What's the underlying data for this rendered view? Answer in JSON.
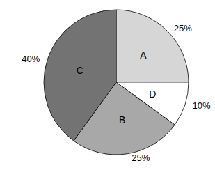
{
  "chart_data": {
    "type": "pie",
    "categories": [
      "A",
      "D",
      "B",
      "C"
    ],
    "values": [
      25,
      10,
      25,
      40
    ],
    "value_labels": [
      "25%",
      "10%",
      "25%",
      "40%"
    ],
    "colors": [
      "#d6d6d6",
      "#ffffff",
      "#a8a8a8",
      "#737373"
    ],
    "data_labels": true
  }
}
